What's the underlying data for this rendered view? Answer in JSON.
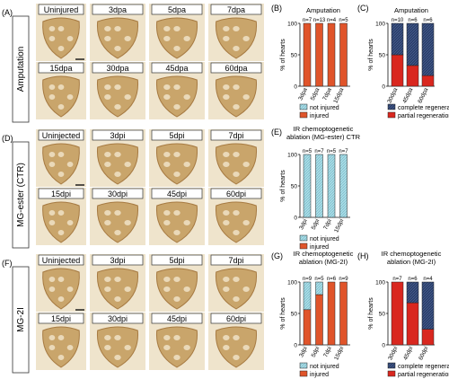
{
  "rows": [
    {
      "panel_label": "(A)",
      "row_label": "Amputation",
      "images": [
        "Uninjured",
        "3dpa",
        "5dpa",
        "7dpa",
        "15dpa",
        "30dpa",
        "45dpa",
        "60dpa"
      ]
    },
    {
      "panel_label": "(D)",
      "row_label": "MG-ester (CTR)",
      "images": [
        "Uninjected",
        "3dpi",
        "5dpi",
        "7dpi",
        "15dpi",
        "30dpi",
        "45dpi",
        "60dpi"
      ]
    },
    {
      "panel_label": "(F)",
      "row_label": "MG-2I",
      "images": [
        "Uninjected",
        "3dpi",
        "5dpi",
        "7dpi",
        "15dpi",
        "30dpi",
        "45dpi",
        "60dpi"
      ]
    }
  ],
  "colors": {
    "injured": "#e0542a",
    "not_injured": "#a9dce6",
    "partial": "#d9271f",
    "complete": "#2b3f6b",
    "tissue": "#c9a56b",
    "tissue_dark": "#a77b43"
  },
  "chart_data": [
    {
      "panel_label": "(B)",
      "type": "bar",
      "title": "Amputation",
      "ylabel": "% of hearts",
      "ylim": [
        0,
        100
      ],
      "yticks": [
        0,
        50,
        100
      ],
      "categories": [
        "3dpa",
        "5dpa",
        "7dpa",
        "15dpa"
      ],
      "n_labels": [
        "n=7",
        "n=13",
        "n=4",
        "n=5"
      ],
      "series": [
        {
          "name": "injured",
          "values": [
            100,
            100,
            100,
            100
          ]
        },
        {
          "name": "not injured",
          "values": [
            0,
            0,
            0,
            0
          ]
        }
      ],
      "legend": [
        "not injured",
        "injured"
      ]
    },
    {
      "panel_label": "(C)",
      "type": "bar",
      "title": "Amputation",
      "ylabel": "% of hearts",
      "ylim": [
        0,
        100
      ],
      "yticks": [
        0,
        50,
        100
      ],
      "categories": [
        "30dpa",
        "45dpa",
        "60dpa"
      ],
      "n_labels": [
        "n=10",
        "n=6",
        "n=6"
      ],
      "series": [
        {
          "name": "partial regeneration",
          "values": [
            50,
            33,
            17
          ]
        },
        {
          "name": "complete regeneration",
          "values": [
            50,
            67,
            83
          ]
        }
      ],
      "legend": [
        "complete regeneration",
        "partial regeneration"
      ]
    },
    {
      "panel_label": "(E)",
      "type": "bar",
      "title": "IR chemoptogenetic ablation (MG-ester) CTR",
      "ylabel": "% of hearts",
      "ylim": [
        0,
        100
      ],
      "yticks": [
        0,
        50,
        100
      ],
      "categories": [
        "3dpi",
        "5dpi",
        "7dpi",
        "15dpi"
      ],
      "n_labels": [
        "n=5",
        "n=7",
        "n=5",
        "n=7"
      ],
      "series": [
        {
          "name": "injured",
          "values": [
            0,
            0,
            0,
            0
          ]
        },
        {
          "name": "not injured",
          "values": [
            100,
            100,
            100,
            100
          ]
        }
      ],
      "legend": [
        "not injured",
        "injured"
      ]
    },
    {
      "panel_label": "(G)",
      "type": "bar",
      "title": "IR chemoptogenetic ablation (MG-2I)",
      "ylabel": "% of hearts",
      "ylim": [
        0,
        100
      ],
      "yticks": [
        0,
        50,
        100
      ],
      "categories": [
        "3dpi",
        "5dpi",
        "7dpi",
        "15dpi"
      ],
      "n_labels": [
        "n=9",
        "n=5",
        "n=6",
        "n=9"
      ],
      "series": [
        {
          "name": "injured",
          "values": [
            56,
            80,
            100,
            100
          ]
        },
        {
          "name": "not injured",
          "values": [
            44,
            20,
            0,
            0
          ]
        }
      ],
      "legend": [
        "not injured",
        "injured"
      ]
    },
    {
      "panel_label": "(H)",
      "type": "bar",
      "title": "IR chemoptogenetic ablation (MG-2I)",
      "ylabel": "% of hearts",
      "ylim": [
        0,
        100
      ],
      "yticks": [
        0,
        50,
        100
      ],
      "categories": [
        "30dpi",
        "45dpi",
        "60dpi"
      ],
      "n_labels": [
        "n=7",
        "n=6",
        "n=4"
      ],
      "series": [
        {
          "name": "partial regeneration",
          "values": [
            100,
            67,
            25
          ]
        },
        {
          "name": "complete regeneration",
          "values": [
            0,
            33,
            75
          ]
        }
      ],
      "legend": [
        "complete regeneration",
        "partial regeneration"
      ]
    }
  ]
}
